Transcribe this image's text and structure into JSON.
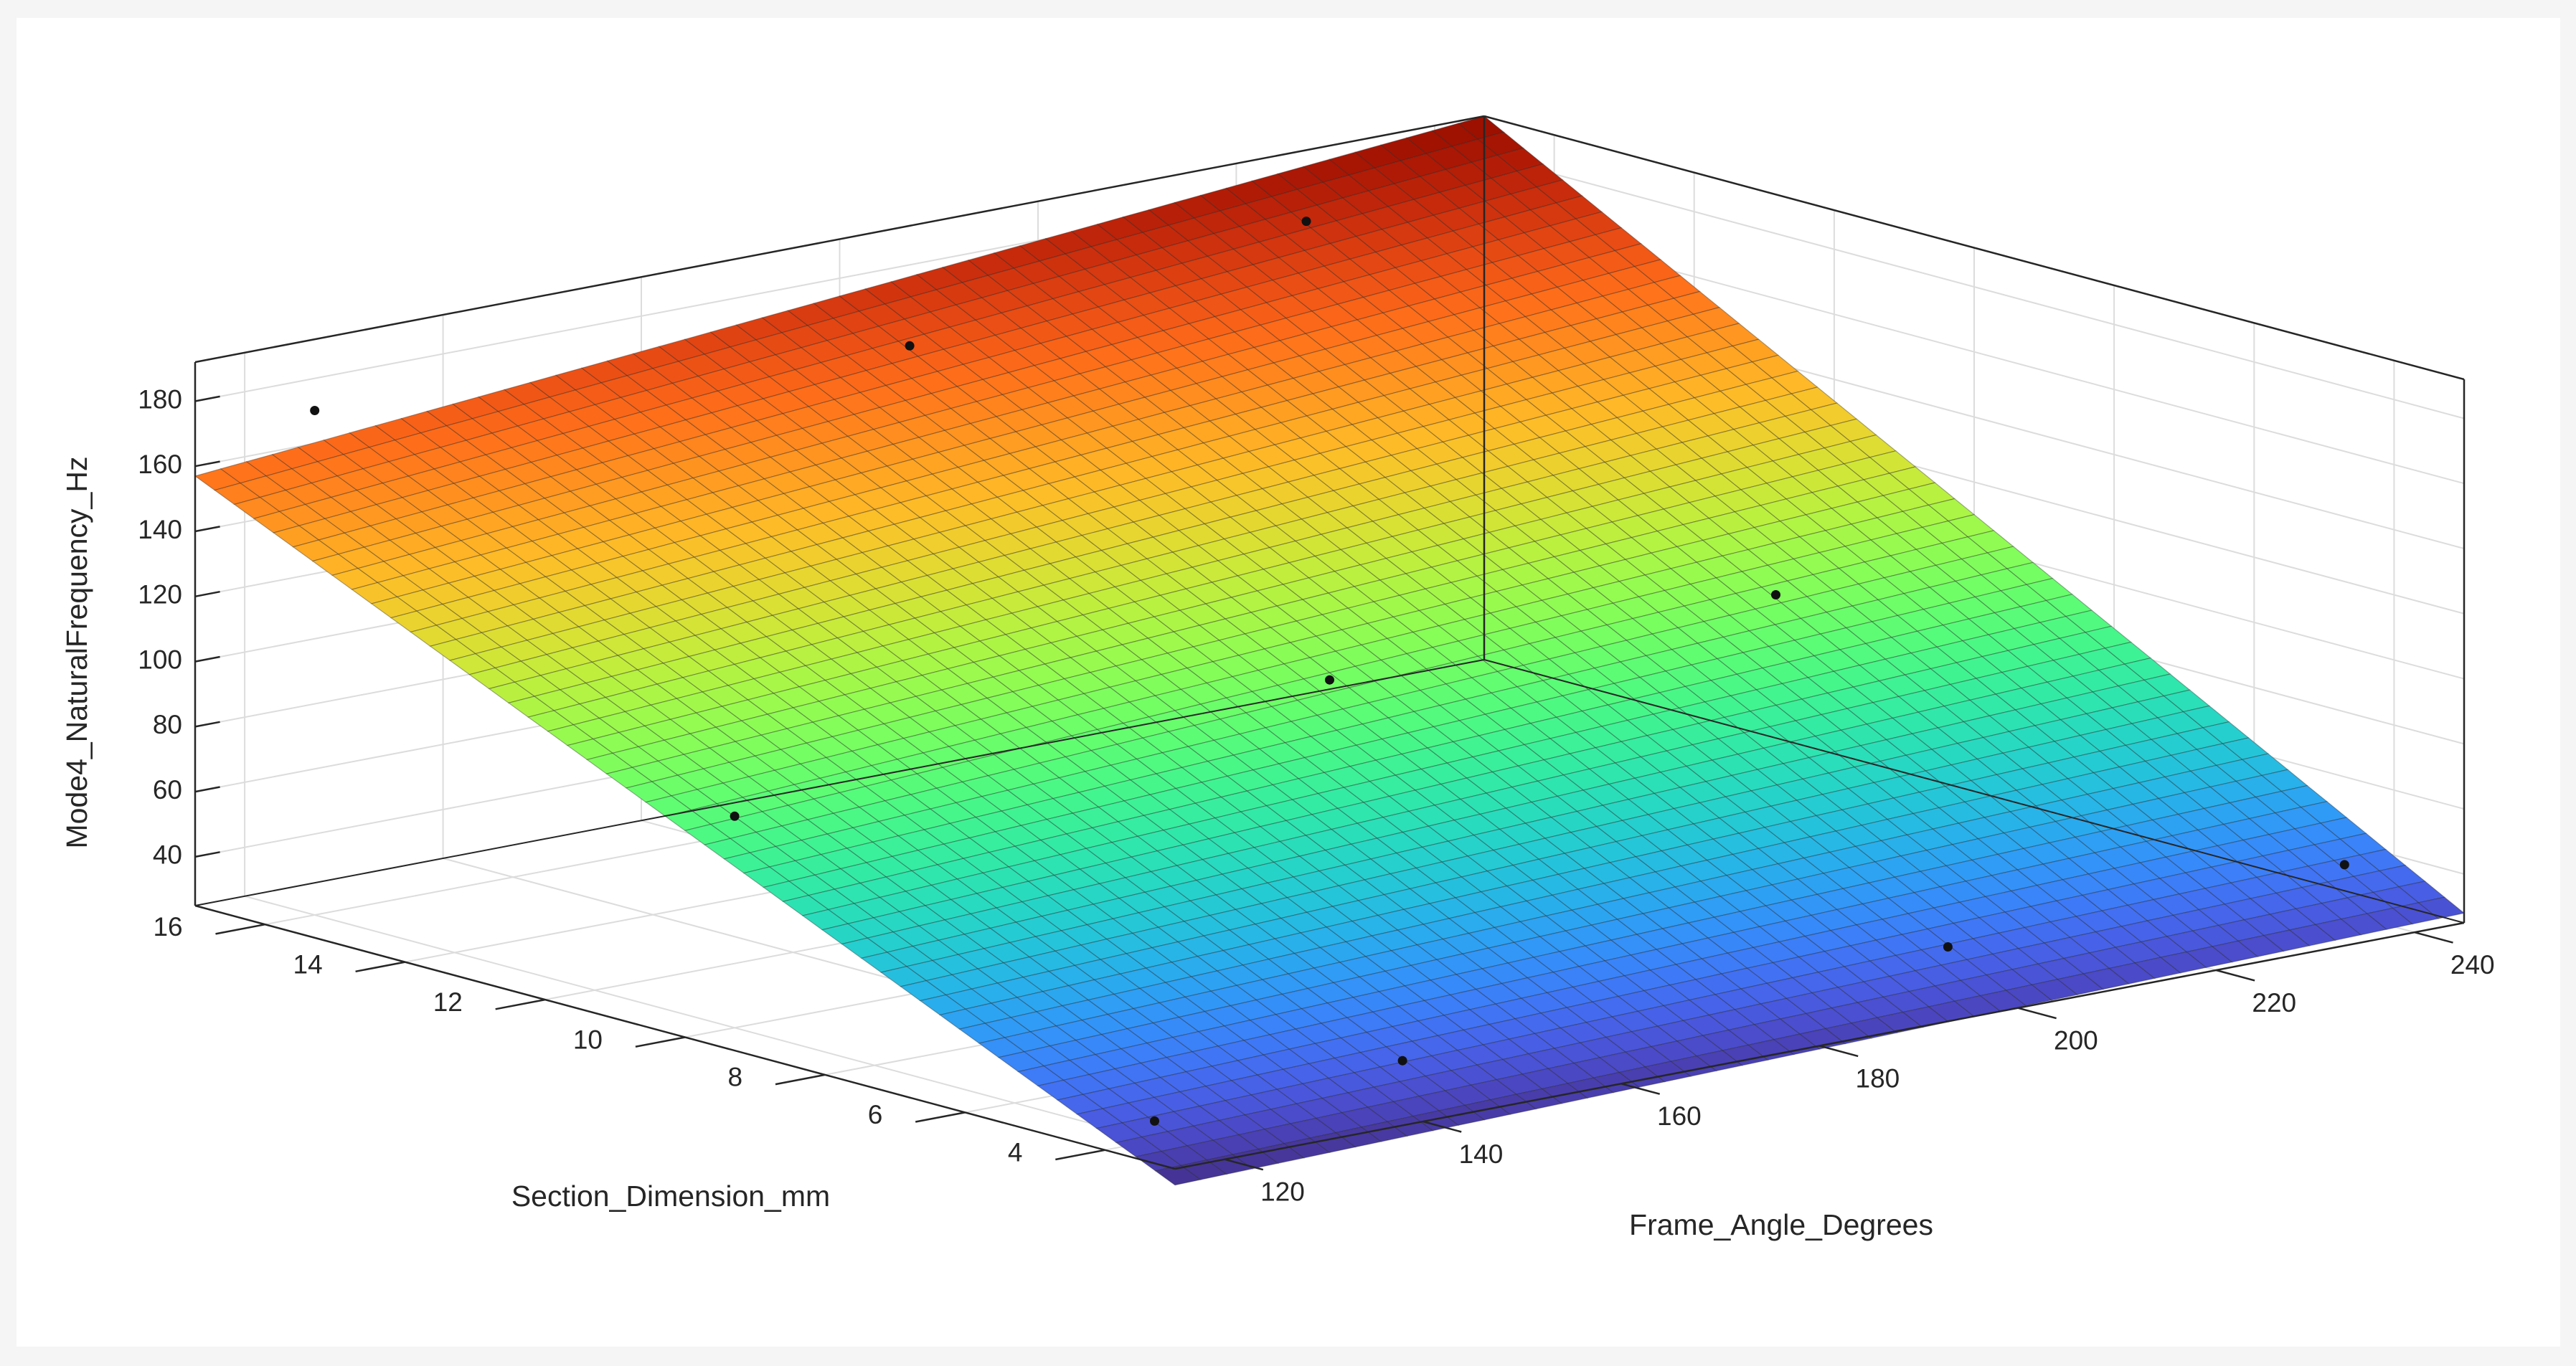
{
  "chart_data": {
    "type": "surface",
    "xlabel": "Frame_Angle_Degrees",
    "ylabel": "Section_Dimension_mm",
    "zlabel": "Mode4_NaturalFrequency_Hz",
    "xlim": [
      115,
      245
    ],
    "ylim": [
      3,
      17
    ],
    "zlim": [
      25,
      192
    ],
    "x_ticks": [
      "120",
      "140",
      "160",
      "180",
      "200",
      "220",
      "240"
    ],
    "y_ticks": [
      "4",
      "6",
      "8",
      "10",
      "12",
      "14",
      "16"
    ],
    "z_ticks": [
      "40",
      "60",
      "80",
      "100",
      "120",
      "140",
      "160",
      "180"
    ],
    "grid": true,
    "colormap": "turbo",
    "surface_corners": [
      {
        "x": 115,
        "y": 3,
        "z": 20
      },
      {
        "x": 245,
        "y": 3,
        "z": 28
      },
      {
        "x": 115,
        "y": 17,
        "z": 157
      },
      {
        "x": 245,
        "y": 17,
        "z": 192
      }
    ],
    "points": [
      {
        "x": 120,
        "y": 4,
        "z": 31
      },
      {
        "x": 145,
        "y": 4,
        "z": 35
      },
      {
        "x": 200,
        "y": 4,
        "z": 38
      },
      {
        "x": 240,
        "y": 4,
        "z": 40
      },
      {
        "x": 120,
        "y": 10,
        "z": 90
      },
      {
        "x": 180,
        "y": 10,
        "z": 97
      },
      {
        "x": 225,
        "y": 10,
        "z": 97
      },
      {
        "x": 120,
        "y": 16,
        "z": 180
      },
      {
        "x": 180,
        "y": 16,
        "z": 165
      },
      {
        "x": 220,
        "y": 16,
        "z": 180
      }
    ]
  },
  "colors": {
    "background": "#f5f5f5",
    "panel": "#ffffff",
    "axis_line": "#262626",
    "grid_line": "#dcdcdc",
    "marker": "#111111"
  }
}
